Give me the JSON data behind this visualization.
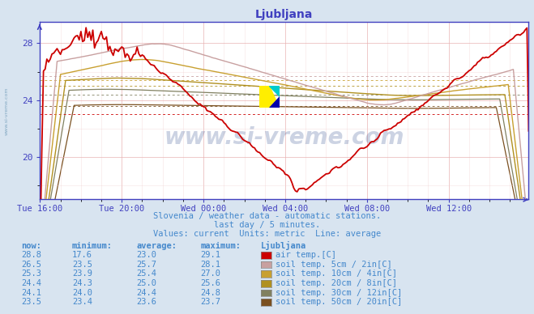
{
  "title": "Ljubljana",
  "background_color": "#d8e4f0",
  "plot_bg_color": "#ffffff",
  "grid_color_major": "#e8c8c8",
  "grid_color_minor": "#f0dede",
  "grid_color_gray": "#d8d8d8",
  "x_labels": [
    "Tue 16:00",
    "Tue 20:00",
    "Wed 00:00",
    "Wed 04:00",
    "Wed 08:00",
    "Wed 12:00"
  ],
  "x_ticks": [
    0,
    48,
    96,
    144,
    192,
    240
  ],
  "n_points": 288,
  "ylim": [
    17.0,
    29.5
  ],
  "yticks": [
    20,
    24,
    28
  ],
  "subtitle1": "Slovenia / weather data - automatic stations.",
  "subtitle2": "last day / 5 minutes.",
  "subtitle3": "Values: current  Units: metric  Line: average",
  "legend_header": "Ljubljana",
  "series": [
    {
      "label": "air temp.[C]",
      "color": "#cc0000",
      "avg": 23.0,
      "now": 28.8,
      "min": 17.6,
      "max": 29.1
    },
    {
      "label": "soil temp. 5cm / 2in[C]",
      "color": "#c8a0a0",
      "avg": 25.7,
      "now": 26.5,
      "min": 23.5,
      "max": 28.1
    },
    {
      "label": "soil temp. 10cm / 4in[C]",
      "color": "#c8a030",
      "avg": 25.4,
      "now": 25.3,
      "min": 23.9,
      "max": 27.0
    },
    {
      "label": "soil temp. 20cm / 8in[C]",
      "color": "#b09020",
      "avg": 25.0,
      "now": 24.4,
      "min": 24.3,
      "max": 25.6
    },
    {
      "label": "soil temp. 30cm / 12in[C]",
      "color": "#808060",
      "avg": 24.4,
      "now": 24.1,
      "min": 24.0,
      "max": 24.8
    },
    {
      "label": "soil temp. 50cm / 20in[C]",
      "color": "#7a5020",
      "avg": 23.6,
      "now": 23.5,
      "min": 23.4,
      "max": 23.7
    }
  ],
  "table_rows": [
    {
      "now": "28.8",
      "min": "17.6",
      "avg": "23.0",
      "max": "29.1"
    },
    {
      "now": "26.5",
      "min": "23.5",
      "avg": "25.7",
      "max": "28.1"
    },
    {
      "now": "25.3",
      "min": "23.9",
      "avg": "25.4",
      "max": "27.0"
    },
    {
      "now": "24.4",
      "min": "24.3",
      "avg": "25.0",
      "max": "25.6"
    },
    {
      "now": "24.1",
      "min": "24.0",
      "avg": "24.4",
      "max": "24.8"
    },
    {
      "now": "23.5",
      "min": "23.4",
      "avg": "23.6",
      "max": "23.7"
    }
  ],
  "swatch_colors": [
    "#cc0000",
    "#c8a0a0",
    "#c8a030",
    "#b09020",
    "#808060",
    "#7a5020"
  ],
  "text_color": "#4488cc",
  "axis_color": "#4040c0",
  "title_color": "#4040c0",
  "watermark_color": "#1a3a80"
}
